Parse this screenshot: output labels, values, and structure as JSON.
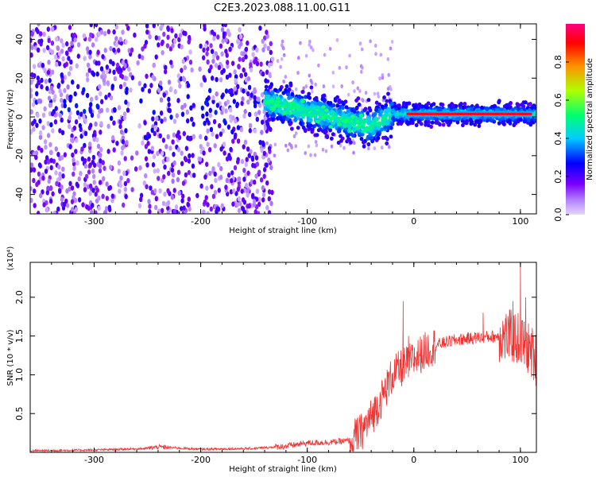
{
  "title": "C2E3.2023.088.11.00.G11",
  "chart_data": [
    {
      "type": "heatmap",
      "xlabel": "Height of straight line (km)",
      "ylabel": "Frequency (Hz)",
      "xlim": [
        -360,
        115
      ],
      "ylim": [
        -50,
        48
      ],
      "xticks": [
        -300,
        -200,
        -100,
        0,
        100
      ],
      "yticks": [
        -40,
        -20,
        0,
        20,
        40
      ],
      "colorbar": {
        "label": "Normalized spectral amplitude",
        "range": [
          0.0,
          1.0
        ],
        "ticks": [
          "0.0",
          "0.2",
          "0.4",
          "0.6",
          "0.8"
        ],
        "colormap": [
          "#ffffff",
          "#c9a6ff",
          "#7a00ff",
          "#0000ff",
          "#00d0ff",
          "#00ff60",
          "#c0ff00",
          "#ff8000",
          "#ff0000",
          "#ff0080"
        ]
      },
      "features": {
        "background_scatter_x_range": [
          -360,
          -140
        ],
        "main_band": {
          "x_range": [
            -140,
            115
          ],
          "center_freq_at_-140": 8,
          "center_freq_at_-40": -5,
          "center_freq_after_-20": 1.5
        },
        "peak_line": {
          "x_range": [
            -5,
            110
          ],
          "frequency": 1.5,
          "amplitude": 0.95
        }
      }
    },
    {
      "type": "line",
      "color": "#ee3333",
      "xlabel": "Height of straight line (km)",
      "ylabel": "SNR (10 * v/v)",
      "y_multiplier": "(x10⁴)",
      "xlim": [
        -360,
        115
      ],
      "ylim": [
        0,
        2.45
      ],
      "xticks": [
        -300,
        -200,
        -100,
        0,
        100
      ],
      "yticks": [
        0.5,
        1.0,
        1.5,
        2.0
      ],
      "x": [
        -360,
        -300,
        -250,
        -240,
        -200,
        -150,
        -120,
        -100,
        -80,
        -60,
        -50,
        -40,
        -30,
        -20,
        -10,
        0,
        10,
        20,
        30,
        40,
        60,
        80,
        90,
        100,
        110,
        115
      ],
      "y": [
        0.02,
        0.03,
        0.05,
        0.07,
        0.04,
        0.05,
        0.08,
        0.12,
        0.13,
        0.15,
        0.25,
        0.45,
        0.7,
        1.0,
        1.1,
        1.2,
        1.3,
        1.38,
        1.42,
        1.45,
        1.48,
        1.5,
        1.5,
        1.45,
        1.3,
        1.2
      ],
      "spikes": [
        {
          "x": -10,
          "y": 1.95
        },
        {
          "x": -5,
          "y": 1.5
        },
        {
          "x": 65,
          "y": 1.8
        },
        {
          "x": 93,
          "y": 1.95
        },
        {
          "x": 100,
          "y": 2.45
        },
        {
          "x": 105,
          "y": 2.0
        }
      ]
    }
  ]
}
